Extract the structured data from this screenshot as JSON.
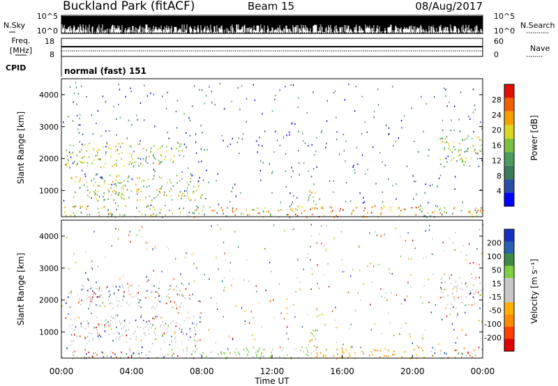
{
  "header": {
    "station": "Buckland Park (fitACF)",
    "beam": "Beam 15",
    "date": "08/Aug/2017"
  },
  "noise_panel": {
    "left_label": "N.Sky",
    "left_ticks": [
      "10^5",
      "10^0"
    ],
    "right_label": "N.Search",
    "right_ticks": [
      "10^5",
      "10^0"
    ]
  },
  "freq_panel": {
    "left_label_1": "Freq.",
    "left_label_2": "[MHz]",
    "left_ticks": [
      "18",
      "8"
    ],
    "right_label": "Nave",
    "right_ticks": [
      "60",
      "0"
    ]
  },
  "cpid": {
    "label": "CPID",
    "value": "normal (fast) 151"
  },
  "colors": {
    "power": [
      "#0000ff",
      "#2a4da8",
      "#3d7a5a",
      "#4b9c5c",
      "#7cc042",
      "#d8d820",
      "#f4a000",
      "#f06000",
      "#e01000"
    ],
    "velocity": [
      "#e00000",
      "#ff4000",
      "#ff8c00",
      "#ffb000",
      "#c8c8c8",
      "#c8c8c8",
      "#7ed040",
      "#3e8a45",
      "#2a60b0",
      "#1830c0"
    ]
  },
  "chart_data": [
    {
      "type": "heatmap",
      "name": "power",
      "xlabel": "",
      "ylabel": "Slant Range [km]",
      "xlim_hours": [
        0,
        24
      ],
      "ylim_km": [
        180,
        4500
      ],
      "yticks": [
        1000,
        2000,
        3000,
        4000
      ],
      "colorbar": {
        "label": "Power [dB]",
        "ticks": [
          "4",
          "8",
          "12",
          "16",
          "20",
          "24",
          "28"
        ]
      },
      "echo_regions": [
        {
          "t0": 0.0,
          "t1": 7.0,
          "r0": 1750,
          "r1": 2500,
          "level": "12-20 dB"
        },
        {
          "t0": 0.5,
          "t1": 8.0,
          "r0": 700,
          "r1": 1500,
          "level": "12-20 dB"
        },
        {
          "t0": 0.0,
          "t1": 24.0,
          "r0": 180,
          "r1": 550,
          "level": "8-28 dB"
        },
        {
          "t0": 21.5,
          "t1": 24.0,
          "r0": 1750,
          "r1": 2750,
          "level": "12-20 dB"
        },
        {
          "t0": 14.0,
          "t1": 14.7,
          "r0": 550,
          "r1": 1100,
          "level": "12-20 dB"
        }
      ]
    },
    {
      "type": "heatmap",
      "name": "velocity",
      "xlabel": "Time UT",
      "ylabel": "Slant Range [km]",
      "xlim_hours": [
        0,
        24
      ],
      "ylim_km": [
        180,
        4500
      ],
      "xticks": [
        "00:00",
        "04:00",
        "08:00",
        "12:00",
        "16:00",
        "20:00",
        "00:00"
      ],
      "yticks": [
        1000,
        2000,
        3000,
        4000
      ],
      "colorbar": {
        "label": "Velocity [m s⁻¹]",
        "ticks": [
          "200",
          "100",
          "50",
          "15",
          "-15",
          "-50",
          "-100",
          "-200"
        ]
      }
    }
  ]
}
